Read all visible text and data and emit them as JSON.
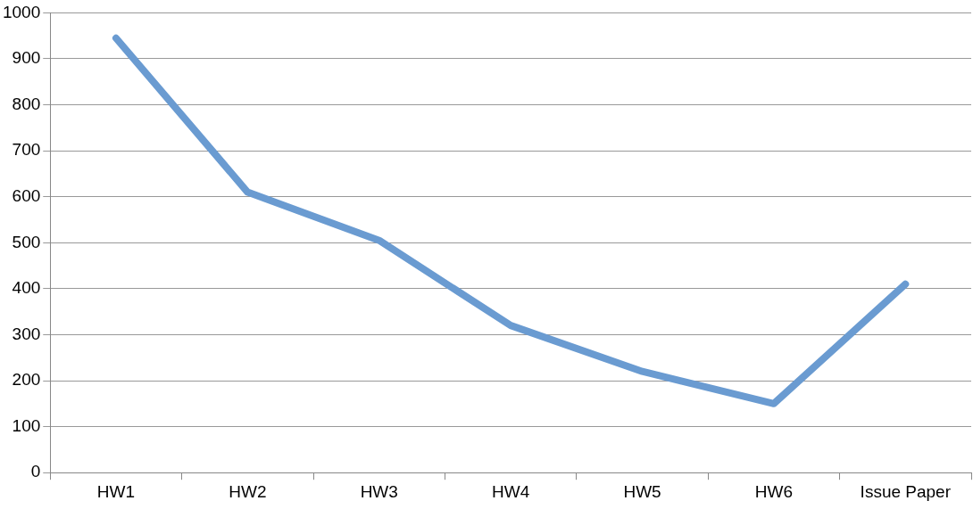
{
  "chart_data": {
    "type": "line",
    "categories": [
      "HW1",
      "HW2",
      "HW3",
      "HW4",
      "HW5",
      "HW6",
      "Issue Paper"
    ],
    "series": [
      {
        "color": "#6a9bd1",
        "values": [
          945,
          610,
          505,
          320,
          220,
          150,
          410
        ]
      }
    ],
    "ylim": [
      0,
      1000
    ],
    "yticks": [
      0,
      100,
      200,
      300,
      400,
      500,
      600,
      700,
      800,
      900,
      1000
    ],
    "grid": "y",
    "legend": false,
    "marker": "none",
    "line_style": "solid"
  }
}
